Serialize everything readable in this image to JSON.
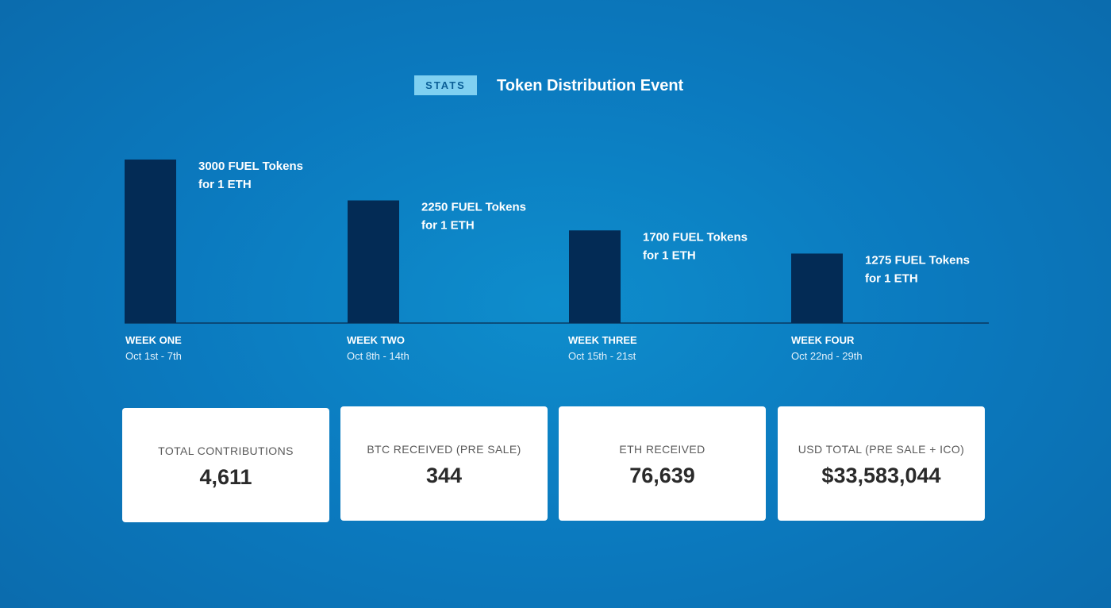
{
  "header": {
    "badge": "STATS",
    "title": "Token Distribution Event"
  },
  "colors": {
    "bar": "#032b55",
    "badge_bg": "#7fd0f1",
    "badge_text": "#0b5f97"
  },
  "chart_data": {
    "type": "bar",
    "categories": [
      "WEEK ONE",
      "WEEK TWO",
      "WEEK THREE",
      "WEEK FOUR"
    ],
    "dates": [
      "Oct 1st - 7th",
      "Oct 8th - 14th",
      "Oct 15th - 21st",
      "Oct 22nd - 29th"
    ],
    "values": [
      3000,
      2250,
      1700,
      1275
    ],
    "labels_line1": [
      "3000 FUEL Tokens",
      "2250 FUEL Tokens",
      "1700 FUEL Tokens",
      "1275 FUEL Tokens"
    ],
    "labels_line2": [
      "for 1 ETH",
      "for 1 ETH",
      "for 1 ETH",
      "for 1 ETH"
    ],
    "ylim": [
      0,
      3000
    ],
    "grid": false,
    "title": "",
    "xlabel": "",
    "ylabel": ""
  },
  "stats": [
    {
      "label": "TOTAL CONTRIBUTIONS",
      "value": "4,611"
    },
    {
      "label": "BTC RECEIVED (PRE SALE)",
      "value": "344"
    },
    {
      "label": "ETH RECEIVED",
      "value": "76,639"
    },
    {
      "label": "USD TOTAL (PRE SALE + ICO)",
      "value": "$33,583,044"
    }
  ]
}
